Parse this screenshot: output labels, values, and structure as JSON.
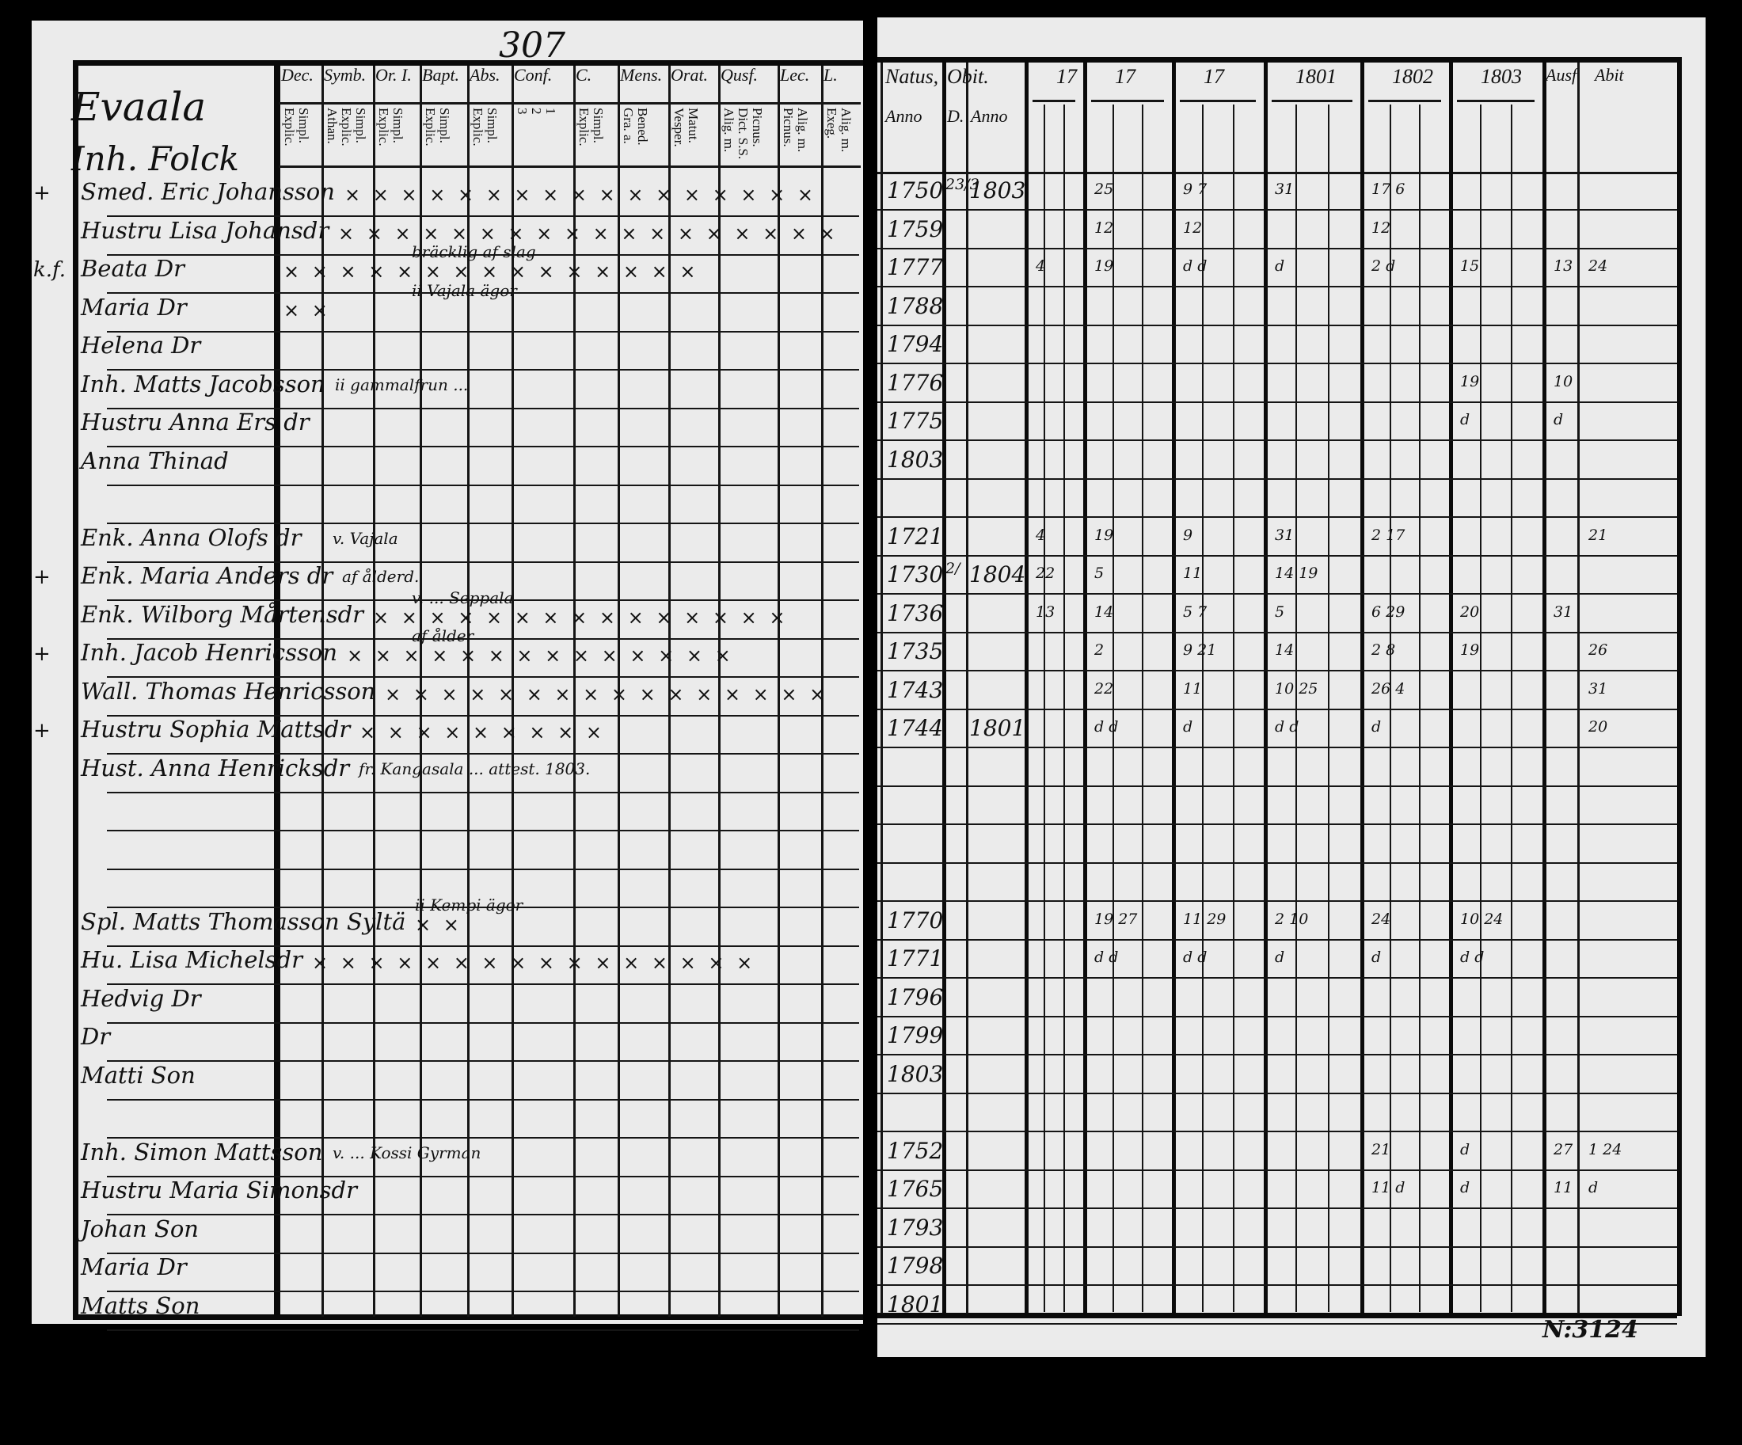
{
  "page_number": "307",
  "archive_number": "N:3124",
  "left_page": {
    "title_line1": "Evaala",
    "title_line2": "Inh. Folck",
    "columns": [
      {
        "label": "Dec.",
        "sub": [
          "Explic.",
          "Simpl."
        ]
      },
      {
        "label": "Symb.",
        "sub": [
          "Athan.",
          "Explic.",
          "Simpl."
        ]
      },
      {
        "label": "Or. I.",
        "sub": [
          "Explic.",
          "Simpl."
        ]
      },
      {
        "label": "Bapt.",
        "sub": [
          "Explic.",
          "Simpl."
        ]
      },
      {
        "label": "Abs.",
        "sub": [
          "Explic.",
          "Simpl."
        ]
      },
      {
        "label": "Conf.",
        "sub": [
          "3",
          "2",
          "1"
        ]
      },
      {
        "label": "C.",
        "sub": [
          "Explic.",
          "Simpl."
        ]
      },
      {
        "label": "Mens.",
        "sub": [
          "Gra. a.",
          "Bened."
        ]
      },
      {
        "label": "Orat.",
        "sub": [
          "Vesper.",
          "Matut."
        ]
      },
      {
        "label": "Qusf.",
        "sub": [
          "Alig. m.",
          "Dict. S.S.",
          "Picnus."
        ]
      },
      {
        "label": "Lec.",
        "sub": [
          "Picnus.",
          "Alig. m."
        ]
      },
      {
        "label": "L.",
        "sub": [
          "Exeg.",
          "Alig. m."
        ]
      }
    ]
  },
  "right_page": {
    "columns": [
      {
        "label": "Natus,",
        "sub": "Anno"
      },
      {
        "label": "Obit.",
        "sub": "D."
      },
      {
        "label": "",
        "sub": "Anno"
      },
      {
        "label": "17",
        "sub": ""
      },
      {
        "label": "17",
        "sub": ""
      },
      {
        "label": "17",
        "sub": ""
      },
      {
        "label": "1801",
        "sub": ""
      },
      {
        "label": "1802",
        "sub": ""
      },
      {
        "label": "1803",
        "sub": ""
      },
      {
        "label": "Ausf.",
        "sub": ""
      },
      {
        "label": "Abit",
        "sub": ""
      }
    ]
  },
  "entries": [
    {
      "margin": "+",
      "name": "Smed. Eric Johansson",
      "marks": "× × × × × × × × × × × × × × × × ×",
      "note": "",
      "born": "1750",
      "died_day": "23/3",
      "died_year": "1803",
      "cells": [
        "",
        "25",
        "9 7",
        "31",
        "17 6",
        "",
        "",
        ""
      ]
    },
    {
      "margin": "",
      "name": "Hustru Lisa Johansdr",
      "marks": "× × × × × × × × × × × × × × × × × ×",
      "note": "",
      "born": "1759",
      "died_day": "",
      "died_year": "",
      "cells": [
        "",
        "12",
        "12",
        "",
        "12",
        "",
        "",
        ""
      ]
    },
    {
      "margin": "k.f.",
      "name": "Beata Dr",
      "marks": "× × × × × × × × × × × × × × ×",
      "note": "bräcklig af slag",
      "born": "1777",
      "died_day": "",
      "died_year": "",
      "cells": [
        "4",
        "19",
        "d d",
        "d",
        "2 d",
        "15",
        "13",
        "24"
      ]
    },
    {
      "margin": "",
      "name": "Maria Dr",
      "marks": "× ×",
      "note": "ii Vajala ägor",
      "born": "1788",
      "died_day": "",
      "died_year": "",
      "cells": [
        "",
        "",
        "",
        "",
        "",
        "",
        "",
        ""
      ]
    },
    {
      "margin": "",
      "name": "Helena Dr",
      "marks": "",
      "note": "",
      "born": "1794",
      "died_day": "",
      "died_year": "",
      "cells": [
        "",
        "",
        "",
        "",
        "",
        "",
        "",
        ""
      ]
    },
    {
      "margin": "",
      "name": "Inh. Matts Jacobsson",
      "marks": "",
      "note": "ii gammalfrun ...",
      "born": "1776",
      "died_day": "",
      "died_year": "",
      "cells": [
        "",
        "",
        "",
        "",
        "",
        "19",
        "10",
        ""
      ]
    },
    {
      "margin": "",
      "name": "Hustru Anna Ers dr",
      "marks": "",
      "note": "",
      "born": "1775",
      "died_day": "",
      "died_year": "",
      "cells": [
        "",
        "",
        "",
        "",
        "",
        "d",
        "d",
        ""
      ]
    },
    {
      "margin": "",
      "name": "Anna Thinad",
      "marks": "",
      "note": "",
      "born": "1803",
      "died_day": "",
      "died_year": "",
      "cells": [
        "",
        "",
        "",
        "",
        "",
        "",
        "",
        ""
      ]
    },
    {
      "margin": "",
      "name": "Enk. Anna Olofs dr",
      "marks": "",
      "note": "v. Vajala",
      "born": "1721",
      "died_day": "",
      "died_year": "",
      "cells": [
        "4",
        "19",
        "9",
        "31",
        "2 17",
        "",
        "",
        "21"
      ]
    },
    {
      "margin": "+",
      "name": "Enk. Maria Anders dr",
      "marks": "",
      "note": "af ålderd.",
      "born": "1730",
      "died_day": "2/",
      "died_year": "1804",
      "cells": [
        "22",
        "5",
        "11",
        "14 19",
        "",
        "",
        "",
        ""
      ]
    },
    {
      "margin": "",
      "name": "Enk. Wilborg Mårtensdr",
      "marks": "× × × × × × × × × × × × × × ×",
      "note": "v. ... Seppala",
      "born": "1736",
      "died_day": "",
      "died_year": "",
      "cells": [
        "13",
        "14",
        "5 7",
        "5",
        "6 29",
        "20",
        "31",
        ""
      ]
    },
    {
      "margin": "+",
      "name": "Inh. Jacob Henricsson",
      "marks": "× × × × × × × × × × × × × ×",
      "note": "af ålder",
      "born": "1735",
      "died_day": "",
      "died_year": "",
      "cells": [
        "",
        "2",
        "9 21",
        "14",
        "2 8",
        "19",
        "",
        "26"
      ]
    },
    {
      "margin": "",
      "name": "Wall. Thomas Henricsson",
      "marks": "× × × × × × × × × × × × × × × ×",
      "note": "",
      "born": "1743",
      "died_day": "",
      "died_year": "",
      "cells": [
        "",
        "22",
        "11",
        "10 25",
        "26 4",
        "",
        "",
        "31"
      ]
    },
    {
      "margin": "+",
      "name": "Hustru Sophia Mattsdr",
      "marks": "× × × × × × × × ×",
      "note": "",
      "born": "1744",
      "died_day": "",
      "died_year": "1801",
      "cells": [
        "",
        "d d",
        "d",
        "d d",
        "d",
        "",
        "",
        "20"
      ]
    },
    {
      "margin": "",
      "name": "Hust. Anna Henricksdr",
      "marks": "",
      "note": "fr. Kangasala ... attest. 1803.",
      "born": "",
      "died_day": "",
      "died_year": "",
      "cells": [
        "",
        "",
        "",
        "",
        "",
        "",
        "",
        ""
      ]
    },
    {
      "margin": "",
      "name": "Spl. Matts Thomasson Syltä",
      "marks": "× ×",
      "note": "ii Kempi ägor",
      "born": "1770",
      "died_day": "",
      "died_year": "",
      "cells": [
        "",
        "19 27",
        "11 29",
        "2 10",
        "24",
        "10 24",
        "",
        ""
      ]
    },
    {
      "margin": "",
      "name": "Hu. Lisa Michelsdr",
      "marks": "× × × × × × × × × × × × × × × ×",
      "note": "",
      "born": "1771",
      "died_day": "",
      "died_year": "",
      "cells": [
        "",
        "d d",
        "d d",
        "d",
        "d",
        "d d",
        "",
        ""
      ]
    },
    {
      "margin": "",
      "name": "Hedvig Dr",
      "marks": "",
      "note": "",
      "born": "1796",
      "died_day": "",
      "died_year": "",
      "cells": [
        "",
        "",
        "",
        "",
        "",
        "",
        "",
        ""
      ]
    },
    {
      "margin": "",
      "name": "Dr",
      "marks": "",
      "note": "",
      "born": "1799",
      "died_day": "",
      "died_year": "",
      "cells": [
        "",
        "",
        "",
        "",
        "",
        "",
        "",
        ""
      ]
    },
    {
      "margin": "",
      "name": "Matti Son",
      "marks": "",
      "note": "",
      "born": "1803",
      "died_day": "",
      "died_year": "",
      "cells": [
        "",
        "",
        "",
        "",
        "",
        "",
        "",
        ""
      ]
    },
    {
      "margin": "",
      "name": "Inh. Simon Mattsson",
      "marks": "",
      "note": "v. ... Kossi Gyrman",
      "born": "1752",
      "died_day": "",
      "died_year": "",
      "cells": [
        "",
        "",
        "",
        "",
        "21",
        "d",
        "27",
        "1 24"
      ]
    },
    {
      "margin": "",
      "name": "Hustru Maria Simonsdr",
      "marks": "",
      "note": "",
      "born": "1765",
      "died_day": "",
      "died_year": "",
      "cells": [
        "",
        "",
        "",
        "",
        "11 d",
        "d",
        "11",
        "d"
      ]
    },
    {
      "margin": "",
      "name": "Johan Son",
      "marks": "",
      "note": "",
      "born": "1793",
      "died_day": "",
      "died_year": "",
      "cells": [
        "",
        "",
        "",
        "",
        "",
        "",
        "",
        ""
      ]
    },
    {
      "margin": "",
      "name": "Maria Dr",
      "marks": "",
      "note": "",
      "born": "1798",
      "died_day": "",
      "died_year": "",
      "cells": [
        "",
        "",
        "",
        "",
        "",
        "",
        "",
        ""
      ]
    },
    {
      "margin": "",
      "name": "Matts Son",
      "marks": "",
      "note": "",
      "born": "1801",
      "died_day": "",
      "died_year": "",
      "cells": [
        "",
        "",
        "",
        "",
        "",
        "",
        "",
        ""
      ]
    }
  ],
  "colors": {
    "paper": "#ebebeb",
    "ink": "#111111",
    "background": "#000000"
  }
}
